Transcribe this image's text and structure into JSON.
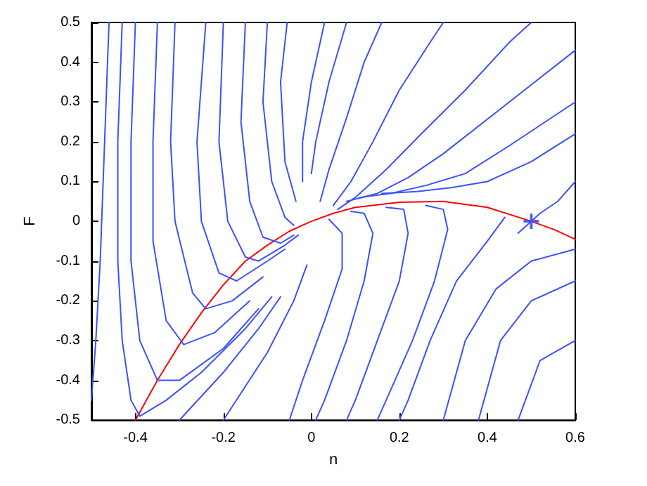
{
  "chart_data": {
    "type": "line",
    "xlabel": "n",
    "ylabel": "F",
    "xlim": [
      -0.5,
      0.6
    ],
    "xticks": [
      -0.4,
      -0.2,
      0,
      0.2,
      0.4,
      0.6
    ],
    "ylim": [
      -0.5,
      0.5
    ],
    "yticks": [
      -0.5,
      -0.4,
      -0.3,
      -0.2,
      -0.1,
      0,
      0.1,
      0.2,
      0.3,
      0.4,
      0.5
    ],
    "grid": false,
    "series": [
      {
        "color": "#ff0000",
        "x": [
          -0.4,
          -0.35,
          -0.3,
          -0.25,
          -0.2,
          -0.15,
          -0.1,
          -0.05,
          0,
          0.05,
          0.1,
          0.2,
          0.3,
          0.4,
          0.5,
          0.55,
          0.6
        ],
        "values": [
          -0.5,
          -0.4,
          -0.31,
          -0.23,
          -0.16,
          -0.1,
          -0.06,
          -0.025,
          0,
          0.02,
          0.035,
          0.048,
          0.05,
          0.035,
          0,
          -0.02,
          -0.045
        ]
      },
      {
        "color": "#3c50ff",
        "x": [
          -0.46,
          -0.47,
          -0.48,
          -0.49,
          -0.5
        ],
        "values": [
          0.5,
          0.2,
          -0.1,
          -0.3,
          -0.45
        ]
      },
      {
        "color": "#3c50ff",
        "x": [
          -0.43,
          -0.44,
          -0.44,
          -0.43,
          -0.41,
          -0.39,
          -0.33,
          -0.25,
          -0.15,
          -0.09
        ],
        "values": [
          0.5,
          0.2,
          -0.1,
          -0.3,
          -0.45,
          -0.49,
          -0.45,
          -0.38,
          -0.27,
          -0.19
        ]
      },
      {
        "color": "#3c50ff",
        "x": [
          -0.4,
          -0.41,
          -0.41,
          -0.39,
          -0.35,
          -0.3,
          -0.2,
          -0.12
        ],
        "values": [
          0.5,
          0.2,
          -0.1,
          -0.3,
          -0.4,
          -0.4,
          -0.32,
          -0.22
        ]
      },
      {
        "color": "#3c50ff",
        "x": [
          -0.35,
          -0.36,
          -0.36,
          -0.33,
          -0.29,
          -0.22,
          -0.14
        ],
        "values": [
          0.5,
          0.2,
          -0.05,
          -0.25,
          -0.31,
          -0.28,
          -0.2
        ]
      },
      {
        "color": "#3c50ff",
        "x": [
          -0.31,
          -0.32,
          -0.31,
          -0.27,
          -0.24,
          -0.18,
          -0.11
        ],
        "values": [
          0.5,
          0.2,
          0,
          -0.18,
          -0.22,
          -0.2,
          -0.14
        ]
      },
      {
        "color": "#3c50ff",
        "x": [
          -0.24,
          -0.26,
          -0.25,
          -0.21,
          -0.17,
          -0.1,
          -0.06
        ],
        "values": [
          0.5,
          0.2,
          0,
          -0.13,
          -0.15,
          -0.1,
          -0.07
        ]
      },
      {
        "color": "#3c50ff",
        "x": [
          -0.2,
          -0.21,
          -0.19,
          -0.15,
          -0.12,
          -0.06,
          -0.03
        ],
        "values": [
          0.5,
          0.2,
          0,
          -0.09,
          -0.1,
          -0.06,
          -0.035
        ]
      },
      {
        "color": "#3c50ff",
        "x": [
          -0.15,
          -0.16,
          -0.14,
          -0.11,
          -0.07,
          -0.04
        ],
        "values": [
          0.5,
          0.25,
          0.05,
          -0.04,
          -0.055,
          -0.035
        ]
      },
      {
        "color": "#3c50ff",
        "x": [
          -0.1,
          -0.11,
          -0.09,
          -0.06,
          -0.04
        ],
        "values": [
          0.5,
          0.3,
          0.1,
          0.01,
          -0.01
        ]
      },
      {
        "color": "#3c50ff",
        "x": [
          -0.055,
          -0.07,
          -0.06,
          -0.035
        ],
        "values": [
          0.5,
          0.35,
          0.15,
          0.05
        ]
      },
      {
        "color": "#3c50ff",
        "x": [
          0.03,
          0,
          -0.02,
          -0.02
        ],
        "values": [
          0.5,
          0.35,
          0.2,
          0.1
        ]
      },
      {
        "color": "#3c50ff",
        "x": [
          0.08,
          0.04,
          0.01,
          0
        ],
        "values": [
          0.5,
          0.35,
          0.2,
          0.12
        ]
      },
      {
        "color": "#3c50ff",
        "x": [
          0.02,
          0.04,
          0.08,
          0.12,
          0.16
        ],
        "values": [
          0.05,
          0.13,
          0.26,
          0.4,
          0.5
        ]
      },
      {
        "color": "#3c50ff",
        "x": [
          0.05,
          0.09,
          0.14,
          0.2,
          0.27,
          0.3
        ],
        "values": [
          0.04,
          0.1,
          0.2,
          0.33,
          0.45,
          0.5
        ]
      },
      {
        "color": "#3c50ff",
        "x": [
          0.06,
          0.1,
          0.17,
          0.25,
          0.35,
          0.45,
          0.5
        ],
        "values": [
          0.03,
          0.06,
          0.13,
          0.22,
          0.33,
          0.45,
          0.5
        ]
      },
      {
        "color": "#3c50ff",
        "x": [
          0.08,
          0.15,
          0.22,
          0.3,
          0.45,
          0.6
        ],
        "values": [
          0.05,
          0.07,
          0.11,
          0.17,
          0.3,
          0.43
        ]
      },
      {
        "color": "#3c50ff",
        "x": [
          0.11,
          0.18,
          0.26,
          0.35,
          0.45,
          0.6
        ],
        "values": [
          0.06,
          0.07,
          0.09,
          0.12,
          0.19,
          0.3
        ]
      },
      {
        "color": "#3c50ff",
        "x": [
          0.16,
          0.24,
          0.32,
          0.4,
          0.5,
          0.6
        ],
        "values": [
          0.07,
          0.075,
          0.085,
          0.1,
          0.15,
          0.22
        ]
      },
      {
        "color": "#3c50ff",
        "x": [
          0.04,
          0.07,
          0.07,
          0.03,
          -0.02,
          -0.05
        ],
        "values": [
          0.005,
          -0.03,
          -0.12,
          -0.25,
          -0.4,
          -0.5
        ]
      },
      {
        "color": "#3c50ff",
        "x": [
          0.09,
          0.12,
          0.14,
          0.12,
          0.08,
          0.03,
          0.01
        ],
        "values": [
          0.025,
          0.02,
          -0.03,
          -0.15,
          -0.3,
          -0.45,
          -0.5
        ]
      },
      {
        "color": "#3c50ff",
        "x": [
          0.17,
          0.21,
          0.22,
          0.2,
          0.15,
          0.1,
          0.08
        ],
        "values": [
          0.035,
          0.03,
          -0.03,
          -0.15,
          -0.3,
          -0.45,
          -0.5
        ]
      },
      {
        "color": "#3c50ff",
        "x": [
          0.26,
          0.3,
          0.31,
          0.28,
          0.23,
          0.17,
          0.15
        ],
        "values": [
          0.04,
          0.03,
          -0.02,
          -0.15,
          -0.3,
          -0.45,
          -0.5
        ]
      },
      {
        "color": "#3c50ff",
        "x": [
          0.44,
          0.4,
          0.33,
          0.27,
          0.22,
          0.2
        ],
        "values": [
          0.01,
          -0.05,
          -0.15,
          -0.3,
          -0.45,
          -0.5
        ]
      },
      {
        "color": "#3c50ff",
        "x": [
          0.6,
          0.5,
          0.42,
          0.35,
          0.3
        ],
        "values": [
          -0.07,
          -0.1,
          -0.17,
          -0.3,
          -0.5
        ]
      },
      {
        "color": "#3c50ff",
        "x": [
          0.6,
          0.5,
          0.43,
          0.38
        ],
        "values": [
          -0.15,
          -0.2,
          -0.3,
          -0.5
        ]
      },
      {
        "color": "#3c50ff",
        "x": [
          0.6,
          0.52,
          0.47
        ],
        "values": [
          -0.3,
          -0.35,
          -0.5
        ]
      },
      {
        "color": "#3c50ff",
        "x": [
          0.47,
          0.52,
          0.56,
          0.6
        ],
        "values": [
          -0.03,
          0.02,
          0.05,
          0.1
        ]
      },
      {
        "color": "#3c50ff",
        "x": [
          -0.3,
          -0.2,
          -0.12,
          -0.07
        ],
        "values": [
          -0.5,
          -0.38,
          -0.27,
          -0.19
        ]
      },
      {
        "color": "#3c50ff",
        "x": [
          -0.2,
          -0.1,
          -0.04,
          -0.01
        ],
        "values": [
          -0.5,
          -0.33,
          -0.2,
          -0.11
        ]
      },
      {
        "type": "scatter",
        "marker": "cross",
        "color": "#3c50ff",
        "x": [
          0.5
        ],
        "values": [
          0
        ]
      }
    ]
  }
}
